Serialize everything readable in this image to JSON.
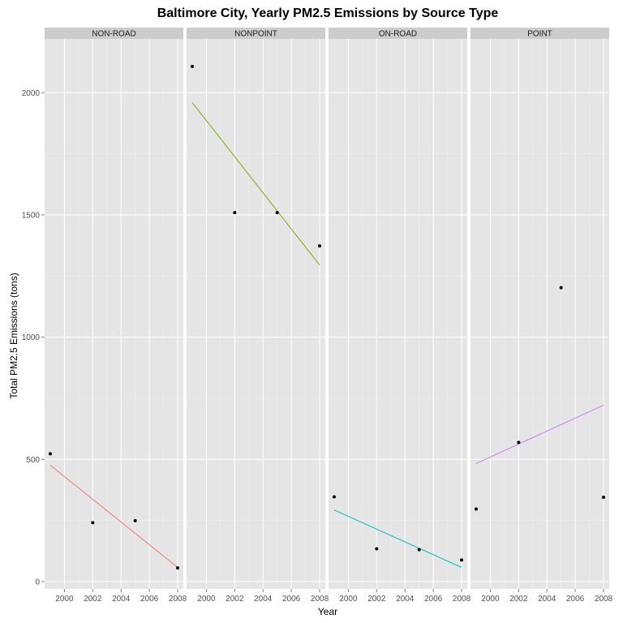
{
  "chart_data": {
    "type": "scatter",
    "title": "Baltimore City, Yearly PM2.5 Emissions by Source Type",
    "xlabel": "Year",
    "ylabel": "Total PM2.5 Emissions (tons)",
    "xlim": [
      1998.6,
      2008.4
    ],
    "ylim": [
      -30,
      2220
    ],
    "x_ticks": [
      2000,
      2002,
      2004,
      2006,
      2008
    ],
    "y_ticks": [
      0,
      500,
      1000,
      1500,
      2000
    ],
    "grid": true,
    "legend": "none",
    "panels": [
      {
        "name": "NON-ROAD",
        "points": [
          {
            "x": 1999,
            "y": 522.9
          },
          {
            "x": 2002,
            "y": 241.0
          },
          {
            "x": 2005,
            "y": 249.0
          },
          {
            "x": 2008,
            "y": 55.8
          }
        ],
        "trend": {
          "x": [
            1999,
            2008
          ],
          "y": [
            476,
            58
          ],
          "color": "#f8766d"
        }
      },
      {
        "name": "NONPOINT",
        "points": [
          {
            "x": 1999,
            "y": 2107.6
          },
          {
            "x": 2002,
            "y": 1509.5
          },
          {
            "x": 2005,
            "y": 1509.5
          },
          {
            "x": 2008,
            "y": 1373.2
          }
        ],
        "trend": {
          "x": [
            1999,
            2008
          ],
          "y": [
            1960,
            1295
          ],
          "color": "#7cae00"
        }
      },
      {
        "name": "ON-ROAD",
        "points": [
          {
            "x": 1999,
            "y": 346.8
          },
          {
            "x": 2002,
            "y": 134.3
          },
          {
            "x": 2005,
            "y": 130.4
          },
          {
            "x": 2008,
            "y": 88.3
          }
        ],
        "trend": {
          "x": [
            1999,
            2008
          ],
          "y": [
            293,
            58
          ],
          "color": "#00bfc4"
        }
      },
      {
        "name": "POINT",
        "points": [
          {
            "x": 1999,
            "y": 296.8
          },
          {
            "x": 2002,
            "y": 569.3
          },
          {
            "x": 2005,
            "y": 1202.5
          },
          {
            "x": 2008,
            "y": 344.98
          }
        ],
        "trend": {
          "x": [
            1999,
            2008
          ],
          "y": [
            483,
            722
          ],
          "color": "#c77cff"
        }
      }
    ]
  }
}
